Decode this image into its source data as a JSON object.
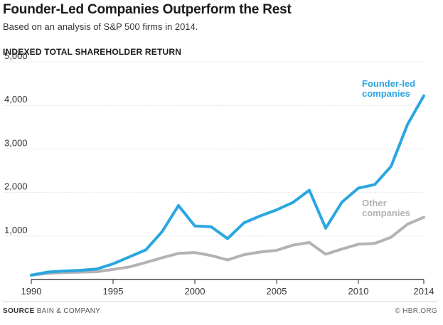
{
  "chart_data": {
    "type": "line",
    "title": "Founder-Led Companies Outperform the Rest",
    "subtitle": "Based on an analysis of S&P 500 firms in 2014.",
    "ylabel": "INDEXED TOTAL SHAREHOLDER RETURN",
    "xlabel": "",
    "xlim": [
      1990,
      2014
    ],
    "ylim": [
      0,
      5000
    ],
    "yticks": [
      1000,
      2000,
      3000,
      4000,
      5000
    ],
    "ytick_labels": [
      "1,000",
      "2,000",
      "3,000",
      "4,000",
      "5,000"
    ],
    "xticks": [
      1990,
      1995,
      2000,
      2005,
      2010,
      2014
    ],
    "xtick_labels": [
      "1990",
      "1995",
      "2000",
      "2005",
      "2010",
      "2014"
    ],
    "grid": "horizontal",
    "x": [
      1990,
      1991,
      1992,
      1993,
      1994,
      1995,
      1996,
      1997,
      1998,
      1999,
      2000,
      2001,
      2002,
      2003,
      2004,
      2005,
      2006,
      2007,
      2008,
      2009,
      2010,
      2011,
      2012,
      2013,
      2014
    ],
    "series": [
      {
        "label_lines": [
          "Founder-led",
          "companies"
        ],
        "color": "#2aa6e0",
        "values": [
          100,
          170,
          195,
          210,
          240,
          360,
          520,
          680,
          1100,
          1700,
          1230,
          1210,
          940,
          1300,
          1460,
          1600,
          1770,
          2050,
          1180,
          1780,
          2100,
          2180,
          2600,
          3560,
          4220
        ]
      },
      {
        "label_lines": [
          "Other",
          "companies"
        ],
        "color": "#b3b3b3",
        "values": [
          100,
          140,
          160,
          170,
          180,
          230,
          290,
          390,
          500,
          600,
          620,
          550,
          450,
          570,
          630,
          670,
          790,
          850,
          580,
          700,
          810,
          830,
          970,
          1270,
          1430
        ]
      }
    ]
  },
  "source_key": "SOURCE",
  "source_value": "BAIN & COMPANY",
  "credit": "© HBR.ORG"
}
